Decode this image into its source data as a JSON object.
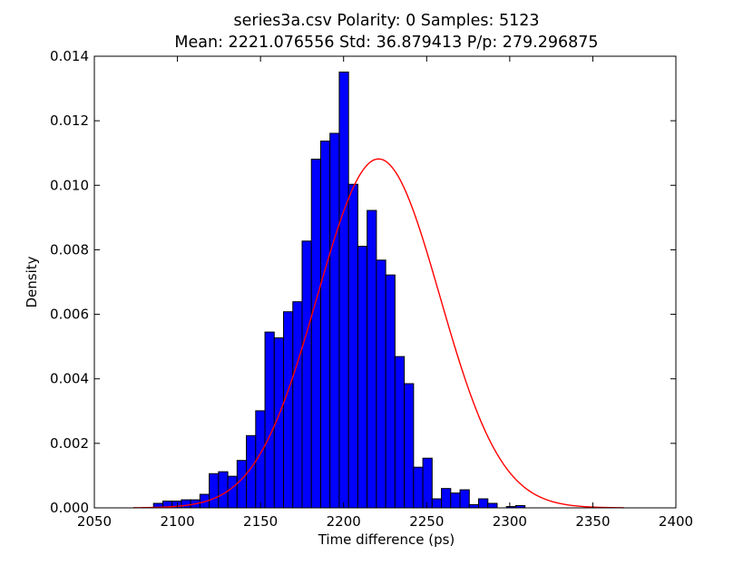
{
  "chart_data": {
    "type": "bar",
    "title_line1": "series3a.csv Polarity: 0 Samples: 5123",
    "title_line2": "Mean: 2221.076556 Std: 36.879413 P/p: 279.296875",
    "xlabel": "Time difference (ps)",
    "ylabel": "Density",
    "xlim": [
      2050,
      2400
    ],
    "ylim": [
      0,
      0.014
    ],
    "xticks": [
      2050,
      2100,
      2150,
      2200,
      2250,
      2300,
      2350,
      2400
    ],
    "yticks": [
      0,
      0.002,
      0.004,
      0.006,
      0.008,
      0.01,
      0.012,
      0.014
    ],
    "xtick_labels": [
      "2050",
      "2100",
      "2150",
      "2200",
      "2250",
      "2300",
      "2350",
      "2400"
    ],
    "ytick_labels": [
      "0.000",
      "0.002",
      "0.004",
      "0.006",
      "0.008",
      "0.010",
      "0.012",
      "0.014"
    ],
    "bin_start": 2085.6,
    "bin_width": 5.59,
    "values": [
      0.00014,
      0.00021,
      0.00021,
      0.00025,
      0.00025,
      0.00042,
      0.00106,
      0.00112,
      0.00098,
      0.00147,
      0.00224,
      0.00301,
      0.00545,
      0.00527,
      0.00608,
      0.00639,
      0.00827,
      0.01081,
      0.01137,
      0.01161,
      0.01351,
      0.01003,
      0.00811,
      0.00922,
      0.00768,
      0.00722,
      0.00469,
      0.00385,
      0.00126,
      0.00154,
      0.00028,
      0.0006,
      0.00046,
      0.00056,
      0.0001,
      0.00028,
      0.00014,
      0,
      4e-05,
      7e-05
    ],
    "bar_color": "#0000ff",
    "fit_curve": {
      "type": "normal",
      "mean": 2221.076556,
      "std": 36.879413,
      "color": "#ff0000"
    }
  }
}
